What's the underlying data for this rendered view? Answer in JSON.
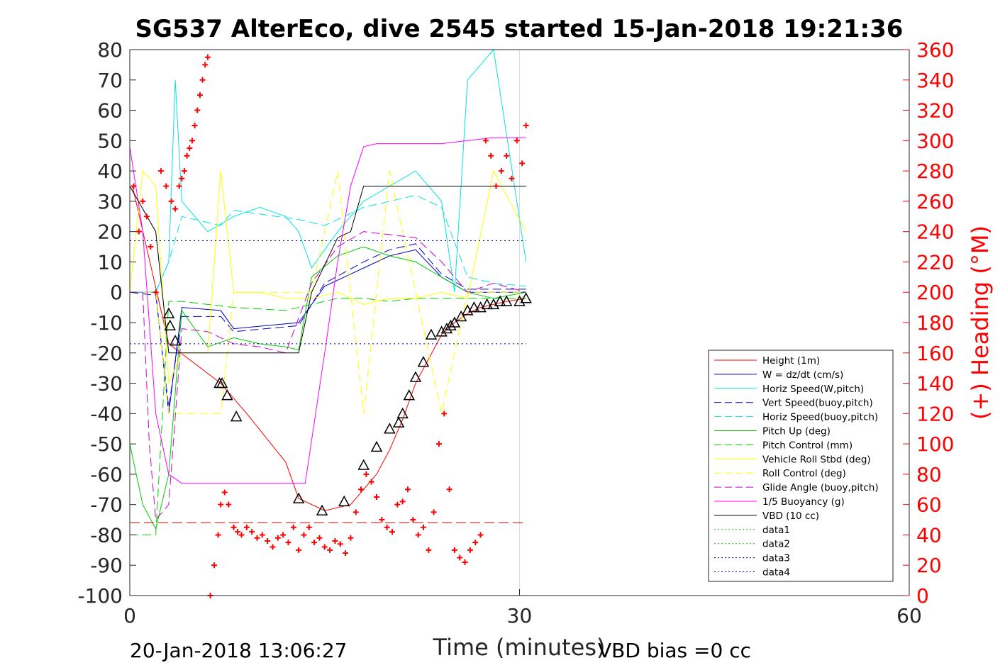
{
  "chart_data": {
    "type": "line",
    "title": "SG537 AlterEco, dive 2545 started 15-Jan-2018 19:21:36",
    "xlabel": "Time (minutes)",
    "ylabel_right": "(+) Heading (°M)",
    "xlim": [
      0,
      60
    ],
    "ylim_left": [
      -100,
      80
    ],
    "ylim_right": [
      0,
      360
    ],
    "x_ticks": [
      "0",
      "30",
      "60"
    ],
    "y_ticks_left": [
      "80",
      "70",
      "60",
      "50",
      "40",
      "30",
      "20",
      "10",
      "0",
      "-10",
      "-20",
      "-30",
      "-40",
      "-50",
      "-60",
      "-70",
      "-80",
      "-90",
      "-100"
    ],
    "y_ticks_right": [
      "360",
      "340",
      "320",
      "300",
      "280",
      "260",
      "240",
      "220",
      "200",
      "180",
      "160",
      "140",
      "120",
      "100",
      "80",
      "60",
      "40",
      "20",
      "0"
    ],
    "grid": "x only at 30",
    "legend_position": "bottom-right",
    "footer_left": "20-Jan-2018 13:06:27",
    "footer_right": "VBD bias =0 cc",
    "colors": {
      "height": "#ff0000",
      "w": "#0000cd",
      "hspeed": "#00e5e5",
      "pitch": "#00cc00",
      "roll": "#ffff00",
      "glide": "#cc00cc",
      "buoy": "#ff00ff",
      "vbd": "#000000",
      "heading": "#ff0000"
    },
    "legend": [
      "Height (1m)",
      "W = dz/dt (cm/s)",
      "Horiz Speed(W,pitch)",
      "Vert Speed(buoy,pitch)",
      "Horiz Speed(buoy,pitch)",
      "Pitch Up (deg)",
      "Pitch Control (mm)",
      "Vehicle Roll Stbd (deg)",
      "Roll Control (deg)",
      "Glide Angle (buoy,pitch)",
      "1/5 Buoyancy (g)",
      "VBD (10 cc)",
      "data1",
      "data2",
      "data3",
      "data4"
    ],
    "series": [
      {
        "name": "Height (1m)",
        "x": [
          0.2,
          3.0,
          7.0,
          9.0,
          12.0,
          13.0,
          15.0,
          17.0,
          19.0,
          20.0,
          21.0,
          22.0,
          23.0,
          24.0,
          25.0,
          26.0,
          27.0,
          28.0,
          29.0,
          30.5
        ],
        "y": [
          35,
          -17,
          -30,
          -40,
          -56,
          -68,
          -72,
          -70,
          -60,
          -52,
          -42,
          -30,
          -22,
          -14,
          -10,
          -7,
          -5,
          -4,
          -3,
          -2
        ]
      },
      {
        "name": "W = dz/dt (cm/s)",
        "x": [
          0,
          2,
          3,
          4,
          7,
          8,
          13,
          15,
          18,
          20,
          22,
          24,
          26,
          28,
          30.5
        ],
        "y": [
          0,
          0,
          -40,
          -5,
          -6,
          -12,
          -10,
          2,
          8,
          12,
          14,
          5,
          0,
          0,
          0
        ]
      },
      {
        "name": "Horiz Speed(W,pitch)",
        "x": [
          0,
          2,
          3,
          3.5,
          4,
          6,
          8,
          10,
          12,
          13,
          14,
          16,
          18,
          20,
          22,
          24,
          25,
          26,
          28,
          30.5
        ],
        "y": [
          0,
          0,
          10,
          70,
          30,
          20,
          25,
          28,
          25,
          20,
          8,
          20,
          30,
          35,
          40,
          30,
          0,
          70,
          80,
          10
        ]
      },
      {
        "name": "Vert Speed(buoy,pitch)",
        "x": [
          0,
          2,
          3,
          4,
          7,
          8,
          13,
          15,
          18,
          20,
          22,
          24,
          26,
          28,
          30.5
        ],
        "y": [
          0,
          -1,
          -38,
          -8,
          -8,
          -13,
          -11,
          3,
          10,
          14,
          16,
          6,
          1,
          1,
          1
        ]
      },
      {
        "name": "Horiz Speed(buoy,pitch)",
        "x": [
          0,
          2,
          3,
          4,
          7,
          8,
          13,
          15,
          18,
          20,
          22,
          24,
          26,
          28,
          30.5
        ],
        "y": [
          0,
          0,
          10,
          25,
          22,
          27,
          24,
          22,
          28,
          30,
          32,
          28,
          5,
          3,
          2
        ]
      },
      {
        "name": "Pitch Up (deg)",
        "x": [
          0,
          1,
          2,
          3,
          4,
          6,
          8,
          10,
          12,
          13,
          14,
          16,
          18,
          20,
          22,
          24,
          26,
          28,
          30.5
        ],
        "y": [
          -50,
          -70,
          -78,
          -60,
          -6,
          -18,
          -15,
          -17,
          -18,
          -19,
          5,
          12,
          15,
          12,
          10,
          5,
          0,
          -2,
          0
        ]
      },
      {
        "name": "Pitch Control (mm)",
        "x": [
          0,
          2,
          3,
          4,
          8,
          12,
          14,
          16,
          18,
          20,
          22,
          24,
          26,
          30.5
        ],
        "y": [
          -80,
          -80,
          -3,
          -3,
          -5,
          -6,
          -4,
          -2,
          -2,
          -3,
          -2,
          -2,
          -2,
          -2
        ]
      },
      {
        "name": "Vehicle Roll Stbd (deg)",
        "x": [
          0,
          1,
          2,
          3,
          4,
          6,
          7,
          8,
          10,
          12,
          14,
          16,
          18,
          20,
          22,
          24,
          26,
          28,
          30.5
        ],
        "y": [
          0,
          40,
          35,
          -30,
          -20,
          -20,
          40,
          0,
          0,
          -2,
          -2,
          0,
          -4,
          -2,
          -2,
          0,
          -2,
          40,
          20
        ]
      },
      {
        "name": "Roll Control (deg)",
        "x": [
          0,
          2,
          3,
          4,
          6,
          7,
          8,
          12,
          14,
          16,
          17,
          18,
          19,
          20,
          22,
          24,
          26,
          30.5
        ],
        "y": [
          0,
          0,
          -40,
          -40,
          -40,
          -40,
          0,
          0,
          0,
          40,
          0,
          -40,
          0,
          40,
          0,
          -40,
          0,
          0
        ]
      },
      {
        "name": "Glide Angle (buoy,pitch)",
        "x": [
          0,
          1,
          1.5,
          2,
          3,
          4,
          6,
          8,
          10,
          12,
          14,
          16,
          18,
          20,
          22,
          24,
          26,
          28,
          30.5
        ],
        "y": [
          0,
          0,
          -50,
          -75,
          -70,
          -12,
          -13,
          -17,
          -18,
          -20,
          3,
          15,
          20,
          19,
          18,
          10,
          0,
          3,
          0
        ]
      },
      {
        "name": "1/5 Buoyancy (g)",
        "x": [
          0,
          1,
          2,
          3,
          4,
          6,
          8,
          10,
          12,
          13.5,
          15,
          16,
          17,
          18,
          19,
          20,
          22,
          24,
          26,
          28,
          30.5
        ],
        "y": [
          48,
          20,
          -40,
          -60,
          -63,
          -63,
          -63,
          -63,
          -63,
          -63,
          -20,
          10,
          35,
          48,
          49,
          49,
          49,
          49,
          50,
          51,
          51
        ]
      },
      {
        "name": "VBD (10 cc)",
        "x": [
          0,
          2,
          3,
          4,
          6,
          8,
          10,
          12,
          13,
          14,
          16,
          17,
          18,
          20,
          22,
          24,
          26,
          28,
          30.5
        ],
        "y": [
          35,
          20,
          -20,
          -20,
          -20,
          -20,
          -20,
          -20,
          -20,
          0,
          18,
          20,
          35,
          35,
          35,
          35,
          35,
          35,
          35
        ]
      },
      {
        "name": "data3",
        "x": [
          0,
          30.5
        ],
        "y": [
          17,
          17
        ]
      },
      {
        "name": "data4",
        "x": [
          0,
          30.5
        ],
        "y": [
          -17,
          -17
        ]
      },
      {
        "name": "Heading (dashed line)",
        "x": [
          0,
          30.5
        ],
        "y": [
          -76,
          -76
        ]
      }
    ],
    "heading_points": {
      "x": [
        0.3,
        0.7,
        1.0,
        1.3,
        1.6,
        2.0,
        2.4,
        2.8,
        3.2,
        3.5,
        3.8,
        4.0,
        4.2,
        4.4,
        4.6,
        4.8,
        5.0,
        5.2,
        5.4,
        5.6,
        5.8,
        6.0,
        6.2,
        6.5,
        6.8,
        7.0,
        7.3,
        7.6,
        8.0,
        8.3,
        8.6,
        9.0,
        9.4,
        9.8,
        10.2,
        10.6,
        11.0,
        11.4,
        11.8,
        12.2,
        12.6,
        13.0,
        13.4,
        13.8,
        14.2,
        14.6,
        15.0,
        15.4,
        15.8,
        16.2,
        16.6,
        17.0,
        17.4,
        17.8,
        18.2,
        18.6,
        19.0,
        19.4,
        19.8,
        20.2,
        20.6,
        21.0,
        21.4,
        21.8,
        22.2,
        22.6,
        23.0,
        23.4,
        23.8,
        24.2,
        24.6,
        25.0,
        25.4,
        25.8,
        26.2,
        26.6,
        27.0,
        27.4,
        27.8,
        28.2,
        28.6,
        29.0,
        29.4,
        29.8,
        30.2,
        30.5
      ],
      "y": [
        270,
        240,
        260,
        250,
        230,
        200,
        280,
        270,
        260,
        255,
        270,
        275,
        280,
        290,
        295,
        300,
        310,
        320,
        330,
        340,
        350,
        355,
        0,
        20,
        40,
        60,
        68,
        60,
        45,
        42,
        40,
        45,
        42,
        38,
        40,
        36,
        32,
        38,
        40,
        35,
        45,
        30,
        40,
        45,
        35,
        38,
        32,
        30,
        36,
        34,
        28,
        38,
        55,
        70,
        80,
        75,
        65,
        50,
        45,
        42,
        60,
        62,
        70,
        50,
        40,
        45,
        30,
        55,
        100,
        120,
        70,
        30,
        25,
        22,
        30,
        35,
        40,
        300,
        290,
        270,
        280,
        290,
        275,
        300,
        285,
        310
      ]
    },
    "markers": {
      "x": [
        3.0,
        3.1,
        3.5,
        6.9,
        7.1,
        7.5,
        8.2,
        13.0,
        14.8,
        16.5,
        18.0,
        19.0,
        20.0,
        20.7,
        21.0,
        21.5,
        22.0,
        22.6,
        23.2,
        24.0,
        24.4,
        24.7,
        25.0,
        25.5,
        26.0,
        26.5,
        27.0,
        27.5,
        28.0,
        28.5,
        29.0,
        30.0,
        30.5
      ],
      "y": [
        -7,
        -11,
        -16,
        -30,
        -30,
        -34,
        -41,
        -68,
        -72,
        -69,
        -57,
        -51,
        -45,
        -43,
        -40,
        -34,
        -28,
        -23,
        -14,
        -13,
        -12,
        -11,
        -10,
        -8,
        -6,
        -5,
        -5,
        -4,
        -4,
        -3,
        -3,
        -3,
        -2
      ]
    }
  }
}
